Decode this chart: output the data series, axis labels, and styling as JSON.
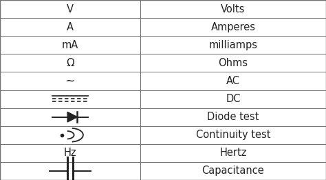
{
  "rows": [
    [
      "V",
      "Volts"
    ],
    [
      "A",
      "Amperes"
    ],
    [
      "mA",
      "milliamps"
    ],
    [
      "Ω",
      "Ohms"
    ],
    [
      "~",
      "AC"
    ],
    [
      "dc_symbol",
      "DC"
    ],
    [
      "diode_symbol",
      "Diode test"
    ],
    [
      "continuity_symbol",
      "Continuity test"
    ],
    [
      "Hz",
      "Hertz"
    ],
    [
      "capacitance_symbol",
      "Capacitance"
    ]
  ],
  "col_split": 0.43,
  "bg_color": "#ffffff",
  "border_color": "#707070",
  "text_color": "#222222",
  "fontsize": 10.5,
  "fig_width": 4.74,
  "fig_height": 2.61,
  "dpi": 100
}
